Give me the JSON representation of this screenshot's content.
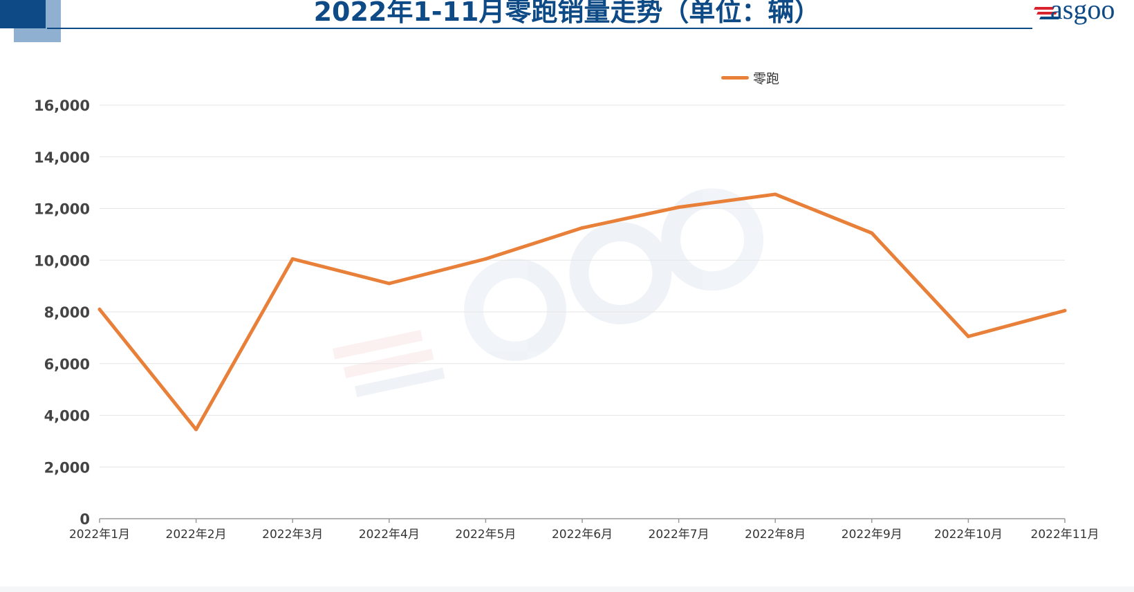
{
  "header": {
    "title": "2022年1-11月零跑销量走势（单位：辆）",
    "logo_text": "asgoo",
    "colors": {
      "primary": "#0d4a86",
      "accent_light": "#8fb0d1",
      "logo_red": "#d9232e"
    }
  },
  "chart_data": {
    "type": "line",
    "title": "2022年1-11月零跑销量走势（单位：辆）",
    "categories": [
      "2022年1月",
      "2022年2月",
      "2022年3月",
      "2022年4月",
      "2022年5月",
      "2022年6月",
      "2022年7月",
      "2022年8月",
      "2022年9月",
      "2022年10月",
      "2022年11月"
    ],
    "y_tick_labels": [
      "0",
      "2,000",
      "4,000",
      "6,000",
      "8,000",
      "10,000",
      "12,000",
      "14,000",
      "16,000"
    ],
    "series": [
      {
        "name": "零跑",
        "color": "#e8803a",
        "values": [
          8100,
          3450,
          10050,
          9100,
          10050,
          11250,
          12050,
          12550,
          11050,
          7050,
          8050
        ]
      }
    ],
    "ylim": [
      0,
      16000
    ],
    "y_step": 2000,
    "grid": true,
    "legend_position": "top-center"
  }
}
